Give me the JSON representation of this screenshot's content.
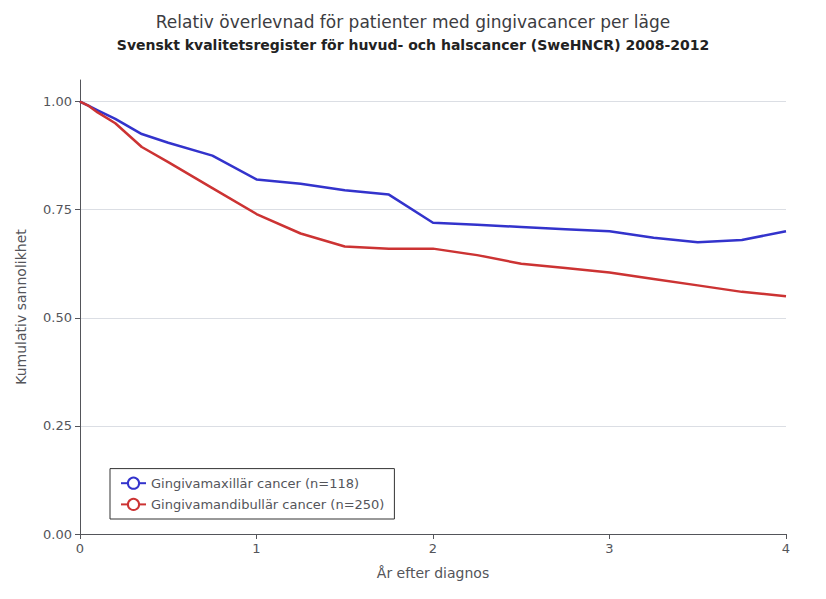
{
  "chart_data": {
    "type": "line",
    "title": "Relativ överlevnad för patienter med gingivacancer per läge",
    "subtitle": "Svenskt kvalitetsregister för huvud- och halscancer (SweHNCR) 2008-2012",
    "x_label": "År efter diagnos",
    "y_label": "Kumulativ sannolikhet",
    "x": [
      0,
      0.05,
      0.1,
      0.2,
      0.35,
      0.5,
      0.75,
      1.0,
      1.25,
      1.5,
      1.75,
      2.0,
      2.25,
      2.5,
      2.75,
      3.0,
      3.25,
      3.5,
      3.75,
      4.0
    ],
    "series": [
      {
        "name": "Gingivamaxillär cancer (n=118)",
        "color": "#3333cc",
        "values": [
          1.0,
          0.99,
          0.98,
          0.96,
          0.925,
          0.905,
          0.875,
          0.82,
          0.81,
          0.795,
          0.785,
          0.72,
          0.715,
          0.71,
          0.705,
          0.7,
          0.685,
          0.675,
          0.68,
          0.7
        ]
      },
      {
        "name": "Gingivamandibullär cancer (n=250)",
        "color": "#cc3333",
        "values": [
          1.0,
          0.99,
          0.975,
          0.95,
          0.895,
          0.86,
          0.8,
          0.74,
          0.695,
          0.665,
          0.66,
          0.66,
          0.645,
          0.625,
          0.615,
          0.605,
          0.59,
          0.575,
          0.56,
          0.55
        ]
      }
    ],
    "xlim": [
      0,
      4
    ],
    "xticks": [
      0,
      1,
      2,
      3,
      4
    ],
    "ylim": [
      0,
      1.05
    ],
    "yticks": [
      {
        "value": 0.0,
        "label": "0.00"
      },
      {
        "value": 0.25,
        "label": "0.25"
      },
      {
        "value": 0.5,
        "label": "0.50"
      },
      {
        "value": 0.75,
        "label": "0.75"
      },
      {
        "value": 1.0,
        "label": "1.00"
      }
    ],
    "grid": true,
    "legend": "lower left"
  }
}
